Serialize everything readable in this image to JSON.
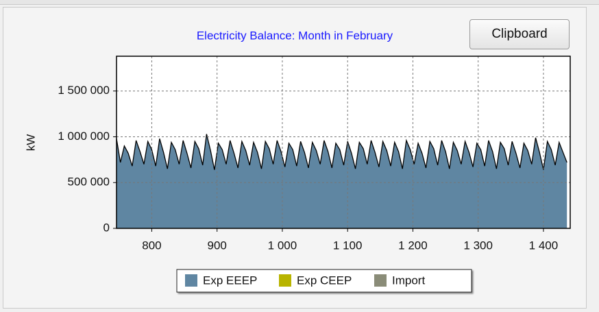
{
  "button": "Clipboard",
  "chart_data": {
    "type": "area",
    "title": "Electricity Balance: Month in February",
    "ylabel": "kW",
    "xlim": [
      746,
      1441
    ],
    "ylim": [
      0,
      1880000
    ],
    "xticks": [
      800,
      900,
      {
        "value": 1000,
        "label": "1 000"
      },
      {
        "value": 1100,
        "label": "1 100"
      },
      {
        "value": 1200,
        "label": "1 200"
      },
      {
        "value": 1300,
        "label": "1 300"
      },
      {
        "value": 1400,
        "label": "1 400"
      }
    ],
    "yticks": [
      0,
      {
        "value": 500000,
        "label": "500 000"
      },
      {
        "value": 1000000,
        "label": "1 000 000"
      },
      {
        "value": 1500000,
        "label": "1 500 000"
      }
    ],
    "grid": true,
    "x": [
      746,
      752,
      758,
      764,
      770,
      776,
      782,
      788,
      794,
      800,
      806,
      812,
      818,
      824,
      830,
      836,
      842,
      848,
      854,
      860,
      866,
      872,
      878,
      884,
      890,
      896,
      902,
      908,
      914,
      920,
      926,
      932,
      938,
      944,
      950,
      956,
      962,
      968,
      974,
      980,
      986,
      992,
      998,
      1004,
      1010,
      1016,
      1022,
      1028,
      1034,
      1040,
      1046,
      1052,
      1058,
      1064,
      1070,
      1076,
      1082,
      1088,
      1094,
      1100,
      1106,
      1112,
      1118,
      1124,
      1130,
      1136,
      1142,
      1148,
      1154,
      1160,
      1166,
      1172,
      1178,
      1184,
      1190,
      1196,
      1202,
      1208,
      1214,
      1220,
      1226,
      1232,
      1238,
      1244,
      1250,
      1256,
      1262,
      1268,
      1274,
      1280,
      1286,
      1292,
      1298,
      1304,
      1310,
      1316,
      1322,
      1328,
      1334,
      1340,
      1346,
      1352,
      1358,
      1364,
      1370,
      1376,
      1382,
      1388,
      1394,
      1400,
      1406,
      1412,
      1418,
      1424,
      1430,
      1436
    ],
    "series": [
      {
        "name": "Exp EEEP",
        "color": "#5f86a2",
        "values": [
          980000,
          720000,
          900000,
          820000,
          680000,
          960000,
          840000,
          700000,
          950000,
          860000,
          680000,
          980000,
          830000,
          650000,
          940000,
          860000,
          700000,
          960000,
          820000,
          660000,
          950000,
          870000,
          690000,
          1030000,
          850000,
          640000,
          930000,
          860000,
          700000,
          960000,
          820000,
          660000,
          950000,
          850000,
          690000,
          940000,
          830000,
          650000,
          950000,
          870000,
          700000,
          960000,
          840000,
          670000,
          930000,
          860000,
          680000,
          950000,
          830000,
          660000,
          940000,
          850000,
          700000,
          960000,
          840000,
          660000,
          930000,
          860000,
          690000,
          950000,
          820000,
          650000,
          940000,
          870000,
          700000,
          960000,
          830000,
          670000,
          950000,
          850000,
          680000,
          940000,
          840000,
          650000,
          960000,
          860000,
          700000,
          930000,
          820000,
          660000,
          950000,
          870000,
          690000,
          960000,
          840000,
          650000,
          940000,
          850000,
          700000,
          950000,
          830000,
          670000,
          930000,
          860000,
          680000,
          960000,
          840000,
          650000,
          940000,
          870000,
          690000,
          950000,
          820000,
          660000,
          930000,
          850000,
          700000,
          990000,
          830000,
          640000,
          950000,
          860000,
          690000,
          940000,
          830000,
          720000
        ]
      },
      {
        "name": "Exp CEEP",
        "color": "#b8b400"
      },
      {
        "name": "Import",
        "color": "#8a8c78"
      }
    ]
  }
}
